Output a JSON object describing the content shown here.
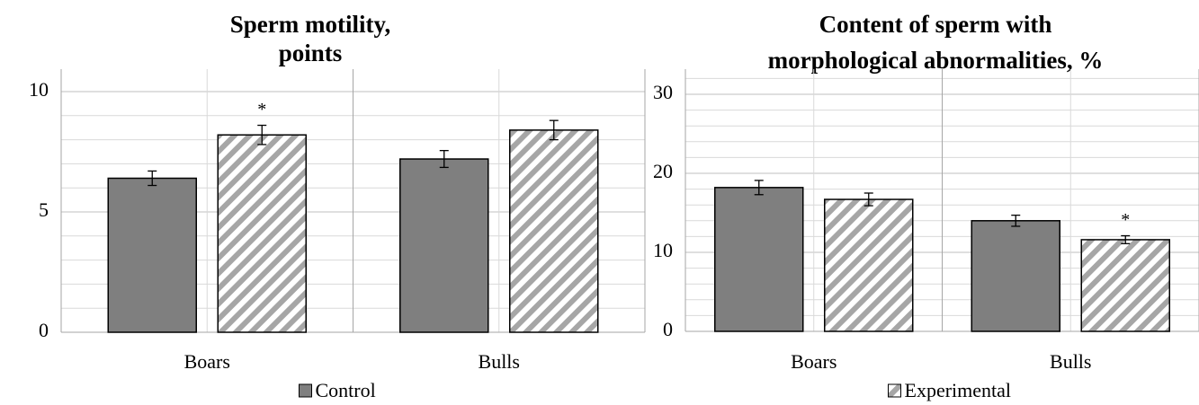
{
  "chart_data": [
    {
      "type": "bar",
      "title": [
        "Sperm motility,",
        "points"
      ],
      "categories": [
        "Boars",
        "Bulls"
      ],
      "series": [
        {
          "name": "Control",
          "color": "#7f7f7f",
          "values": [
            6.4,
            7.2
          ],
          "errors": [
            0.3,
            0.35
          ]
        },
        {
          "name": "Experimental",
          "color": "#a6a6a6",
          "pattern": "diagonal",
          "values": [
            8.2,
            8.4
          ],
          "errors": [
            0.4,
            0.4
          ]
        }
      ],
      "ylim": [
        0,
        10
      ],
      "yticks": [
        0,
        5,
        10
      ],
      "grid": true,
      "minor_grid": true,
      "legend": {
        "position": "bottom",
        "series": [
          0
        ]
      },
      "annotations": [
        {
          "text": "*",
          "series": 1,
          "category": 0
        }
      ]
    },
    {
      "type": "bar",
      "title": [
        "Content of sperm with",
        "morphological abnormalities, %"
      ],
      "categories": [
        "Boars",
        "Bulls"
      ],
      "series": [
        {
          "name": "Control",
          "color": "#7f7f7f",
          "values": [
            18.2,
            14.0
          ],
          "errors": [
            0.9,
            0.7
          ]
        },
        {
          "name": "Experimental",
          "color": "#a6a6a6",
          "pattern": "diagonal",
          "values": [
            16.7,
            11.6
          ],
          "errors": [
            0.8,
            0.5
          ]
        }
      ],
      "ylim": [
        0,
        30
      ],
      "yticks": [
        0,
        10,
        20,
        30
      ],
      "grid": true,
      "minor_grid": true,
      "legend": {
        "position": "bottom",
        "series": [
          1
        ]
      },
      "annotations": [
        {
          "text": "*",
          "series": 1,
          "category": 1
        }
      ]
    }
  ]
}
